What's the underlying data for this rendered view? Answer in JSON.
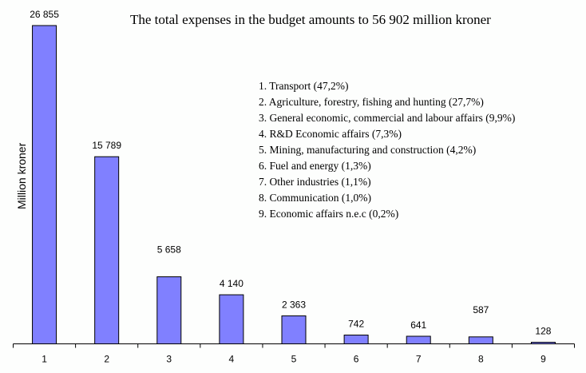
{
  "chart_data": {
    "type": "bar",
    "title": "The total expenses in the budget amounts to 56 902 million kroner",
    "xlabel": "",
    "ylabel": "Million kroner",
    "categories": [
      "1",
      "2",
      "3",
      "4",
      "5",
      "6",
      "7",
      "8",
      "9"
    ],
    "values": [
      26855,
      15789,
      5658,
      4140,
      2363,
      742,
      641,
      587,
      128
    ],
    "data_labels": [
      "26 855",
      "15 789",
      "5 658",
      "4 140",
      "2 363",
      "742",
      "641",
      "587",
      "128"
    ],
    "ylim": [
      0,
      26855
    ],
    "grid": false,
    "bar_color": "#8080ff",
    "legend_placement": "top-right",
    "legend": [
      "1. Transport (47,2%)",
      "2. Agriculture, forestry, fishing and hunting (27,7%)",
      "3. General economic, commercial and labour affairs (9,9%)",
      "4. R&D Economic affairs (7,3%)",
      "5. Mining, manufacturing and construction (4,2%)",
      "6. Fuel and energy (1,3%)",
      "7. Other industries (1,1%)",
      "8. Communication (1,0%)",
      "9. Economic affairs n.e.c (0,2%)"
    ]
  }
}
